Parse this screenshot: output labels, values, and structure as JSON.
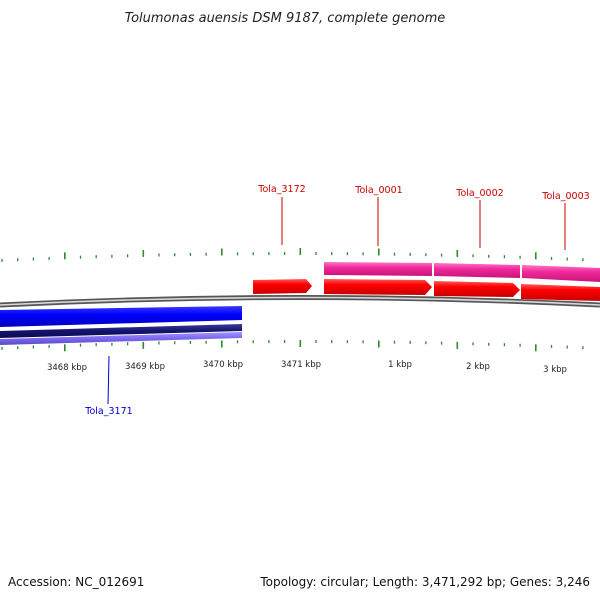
{
  "title": "Tolumonas auensis DSM 9187, complete genome",
  "footer": {
    "accession": "Accession: NC_012691",
    "summary": "Topology: circular; Length: 3,471,292 bp; Genes: 3,246"
  },
  "colors": {
    "background": "#ffffff",
    "backbone": "#8c8c8c",
    "tick": "#2e8b2e",
    "forward_cds": "#ff0000",
    "forward_gene": "#ff3399",
    "reverse_cds": "#0000ff",
    "reverse_gene": "#14146e",
    "reverse_gene_light": "#7b68ee",
    "label_forward": "#cc0000",
    "label_reverse": "#0000cc"
  },
  "kbp_labels": [
    "3468 kbp",
    "3469 kbp",
    "3470 kbp",
    "3471 kbp",
    "1 kbp",
    "2 kbp",
    "3 kbp"
  ],
  "gene_labels": {
    "tola_3171": "Tola_3171",
    "tola_3172": "Tola_3172",
    "tola_0001": "Tola_0001",
    "tola_0002": "Tola_0002",
    "tola_0003": "Tola_0003"
  }
}
